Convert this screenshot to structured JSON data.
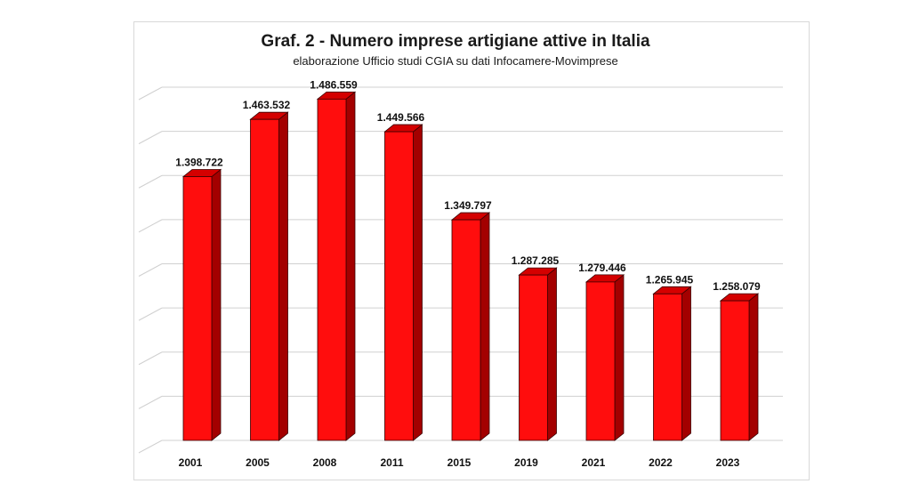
{
  "chart_data": {
    "type": "bar",
    "title": "Graf. 2 - Numero imprese artigiane attive in Italia",
    "subtitle": "elaborazione Ufficio studi CGIA su dati Infocamere-Movimprese",
    "categories": [
      "2001",
      "2005",
      "2008",
      "2011",
      "2015",
      "2019",
      "2021",
      "2022",
      "2023"
    ],
    "values": [
      1398722,
      1463532,
      1486559,
      1449566,
      1349797,
      1287285,
      1279446,
      1265945,
      1258079
    ],
    "value_labels": [
      "1.398.722",
      "1.463.532",
      "1.486.559",
      "1.449.566",
      "1.349.797",
      "1.287.285",
      "1.279.446",
      "1.265.945",
      "1.258.079"
    ],
    "xlabel": "",
    "ylabel": "",
    "ylim": [
      1100000,
      1500000
    ],
    "grid": true,
    "legend": "none",
    "style": "3d-column",
    "colors": {
      "bar_front": "#ff0d0d",
      "bar_side": "#a30000",
      "bar_top": "#d40000",
      "grid": "#d0d0d0"
    }
  }
}
